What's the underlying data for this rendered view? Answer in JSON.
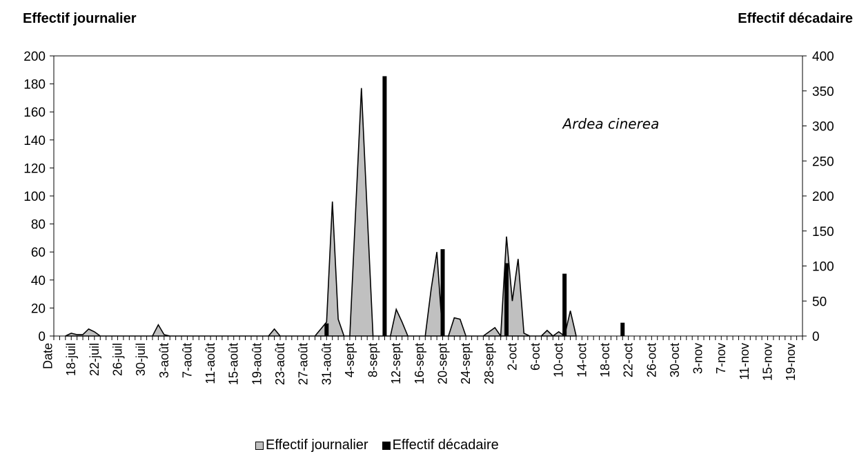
{
  "colors": {
    "area_fill": "#c0c0c0",
    "area_stroke": "#000000",
    "bar_fill": "#000000"
  },
  "chart_data": {
    "type": "area",
    "ylabel": "Effectif journalier",
    "y2label": "Effectif décadaire",
    "ylim": [
      0,
      200
    ],
    "y2lim": [
      0,
      400
    ],
    "yticks": [
      0,
      20,
      40,
      60,
      80,
      100,
      120,
      140,
      160,
      180,
      200
    ],
    "y2ticks": [
      0,
      50,
      100,
      150,
      200,
      250,
      300,
      350,
      400
    ],
    "x_start": "2013-07-15",
    "x_end": "2013-11-21",
    "x_ticks": [
      {
        "date": "2013-07-14",
        "label": "Date"
      },
      {
        "date": "2013-07-18",
        "label": "18-juil"
      },
      {
        "date": "2013-07-22",
        "label": "22-juil"
      },
      {
        "date": "2013-07-26",
        "label": "26-juil"
      },
      {
        "date": "2013-07-30",
        "label": "30-juil"
      },
      {
        "date": "2013-08-03",
        "label": "3-août"
      },
      {
        "date": "2013-08-07",
        "label": "7-août"
      },
      {
        "date": "2013-08-11",
        "label": "11-août"
      },
      {
        "date": "2013-08-15",
        "label": "15-août"
      },
      {
        "date": "2013-08-19",
        "label": "19-août"
      },
      {
        "date": "2013-08-23",
        "label": "23-août"
      },
      {
        "date": "2013-08-27",
        "label": "27-août"
      },
      {
        "date": "2013-08-31",
        "label": "31-août"
      },
      {
        "date": "2013-09-04",
        "label": "4-sept"
      },
      {
        "date": "2013-09-08",
        "label": "8-sept"
      },
      {
        "date": "2013-09-12",
        "label": "12-sept"
      },
      {
        "date": "2013-09-16",
        "label": "16-sept"
      },
      {
        "date": "2013-09-20",
        "label": "20-sept"
      },
      {
        "date": "2013-09-24",
        "label": "24-sept"
      },
      {
        "date": "2013-09-28",
        "label": "28-sept"
      },
      {
        "date": "2013-10-02",
        "label": "2-oct"
      },
      {
        "date": "2013-10-06",
        "label": "6-oct"
      },
      {
        "date": "2013-10-10",
        "label": "10-oct"
      },
      {
        "date": "2013-10-14",
        "label": "14-oct"
      },
      {
        "date": "2013-10-18",
        "label": "18-oct"
      },
      {
        "date": "2013-10-22",
        "label": "22-oct"
      },
      {
        "date": "2013-10-26",
        "label": "26-oct"
      },
      {
        "date": "2013-10-30",
        "label": "30-oct"
      },
      {
        "date": "2013-11-03",
        "label": "3-nov"
      },
      {
        "date": "2013-11-07",
        "label": "7-nov"
      },
      {
        "date": "2013-11-11",
        "label": "11-nov"
      },
      {
        "date": "2013-11-15",
        "label": "15-nov"
      },
      {
        "date": "2013-11-19",
        "label": "19-nov"
      }
    ],
    "series": [
      {
        "name": "Effectif journalier",
        "type": "area",
        "axis": "left",
        "points": [
          [
            "2013-07-17",
            0
          ],
          [
            "2013-07-18",
            2
          ],
          [
            "2013-07-19",
            1
          ],
          [
            "2013-07-20",
            1
          ],
          [
            "2013-07-21",
            5
          ],
          [
            "2013-07-22",
            3
          ],
          [
            "2013-07-23",
            0
          ],
          [
            "2013-08-01",
            0
          ],
          [
            "2013-08-02",
            8
          ],
          [
            "2013-08-03",
            1
          ],
          [
            "2013-08-04",
            0
          ],
          [
            "2013-08-21",
            0
          ],
          [
            "2013-08-22",
            5
          ],
          [
            "2013-08-23",
            0
          ],
          [
            "2013-08-29",
            0
          ],
          [
            "2013-08-30",
            5
          ],
          [
            "2013-08-31",
            10
          ],
          [
            "2013-09-01",
            96
          ],
          [
            "2013-09-02",
            12
          ],
          [
            "2013-09-03",
            0
          ],
          [
            "2013-09-04",
            0
          ],
          [
            "2013-09-05",
            89
          ],
          [
            "2013-09-06",
            177
          ],
          [
            "2013-09-07",
            88
          ],
          [
            "2013-09-08",
            0
          ],
          [
            "2013-09-11",
            0
          ],
          [
            "2013-09-12",
            19
          ],
          [
            "2013-09-13",
            10
          ],
          [
            "2013-09-14",
            0
          ],
          [
            "2013-09-17",
            0
          ],
          [
            "2013-09-18",
            33
          ],
          [
            "2013-09-19",
            60
          ],
          [
            "2013-09-20",
            0
          ],
          [
            "2013-09-21",
            0
          ],
          [
            "2013-09-22",
            13
          ],
          [
            "2013-09-23",
            12
          ],
          [
            "2013-09-24",
            0
          ],
          [
            "2013-09-27",
            0
          ],
          [
            "2013-09-28",
            3
          ],
          [
            "2013-09-29",
            6
          ],
          [
            "2013-09-30",
            0
          ],
          [
            "2013-10-01",
            71
          ],
          [
            "2013-10-02",
            25
          ],
          [
            "2013-10-03",
            55
          ],
          [
            "2013-10-04",
            2
          ],
          [
            "2013-10-05",
            0
          ],
          [
            "2013-10-07",
            0
          ],
          [
            "2013-10-08",
            4
          ],
          [
            "2013-10-09",
            0
          ],
          [
            "2013-10-10",
            3
          ],
          [
            "2013-10-11",
            0
          ],
          [
            "2013-10-12",
            18
          ],
          [
            "2013-10-13",
            0
          ]
        ]
      },
      {
        "name": "Effectif décadaire",
        "type": "bar",
        "axis": "right",
        "points": [
          [
            "2013-08-31",
            18
          ],
          [
            "2013-09-10",
            371
          ],
          [
            "2013-09-20",
            124
          ],
          [
            "2013-10-01",
            104
          ],
          [
            "2013-10-11",
            89
          ],
          [
            "2013-10-21",
            19
          ]
        ]
      }
    ],
    "annotations": [
      {
        "text": "Ardea cinerea",
        "date": "2013-10-19",
        "y": 148
      }
    ],
    "grid": false,
    "legend": "bottom"
  }
}
